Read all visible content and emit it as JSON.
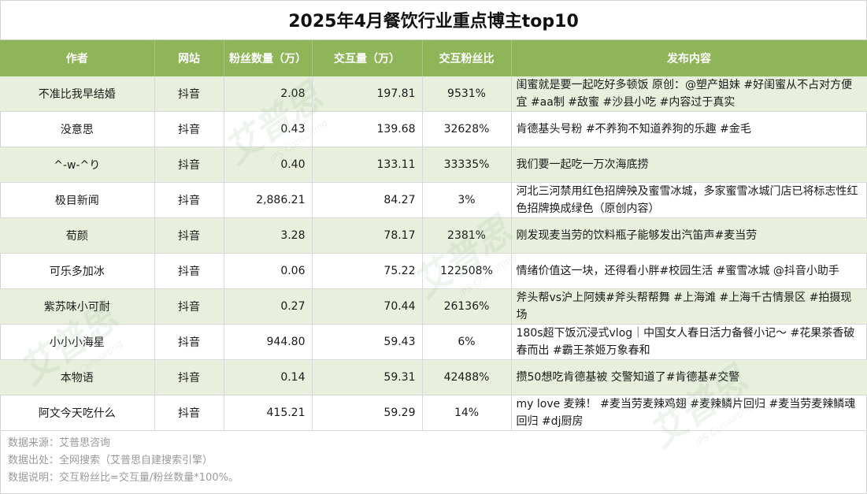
{
  "title": "2025年4月餐饮行业重点博主top10",
  "headers": [
    "作者",
    "网站",
    "粉丝数量（万）",
    "交互量（万）",
    "交互粉丝比",
    "发布内容"
  ],
  "rows": [
    {
      "author": "不准比我早结婚",
      "site": "抖音",
      "fans": "2.08",
      "interactions": "197.81",
      "ratio": "9531%",
      "content": "闺蜜就是要一起吃好多顿饭 原创：@塑产姐妹 #好闺蜜从不占对方便宜 #aa制 #敌蜜 #沙县小吃 #内容过于真实"
    },
    {
      "author": "没意思",
      "site": "抖音",
      "fans": "0.43",
      "interactions": "139.68",
      "ratio": "32628%",
      "content": "肯德基头号粉 #不养狗不知道养狗的乐趣 #金毛"
    },
    {
      "author": "^-w-^り",
      "site": "抖音",
      "fans": "0.40",
      "interactions": "133.11",
      "ratio": "33335%",
      "content": "我们要一起吃一万次海底捞"
    },
    {
      "author": "极目新闻",
      "site": "抖音",
      "fans": "2,886.21",
      "interactions": "84.27",
      "ratio": "3%",
      "content": "河北三河禁用红色招牌殃及蜜雪冰城，多家蜜雪冰城门店已将标志性红色招牌换成绿色（原创内容）"
    },
    {
      "author": "荀颜",
      "site": "抖音",
      "fans": "3.28",
      "interactions": "78.17",
      "ratio": "2381%",
      "content": "刚发现麦当劳的饮料瓶子能够发出汽笛声#麦当劳"
    },
    {
      "author": "可乐多加冰",
      "site": "抖音",
      "fans": "0.06",
      "interactions": "75.22",
      "ratio": "122508%",
      "content": "情绪价值这一块，还得看小胖#校园生活 #蜜雪冰城 @抖音小助手"
    },
    {
      "author": "紫苏味小可耐",
      "site": "抖音",
      "fans": "0.27",
      "interactions": "70.44",
      "ratio": "26136%",
      "content": "斧头帮vs沪上阿姨#斧头帮帮舞 #上海滩 #上海千古情景区 #拍摄现场"
    },
    {
      "author": "小小小海星",
      "site": "抖音",
      "fans": "944.80",
      "interactions": "59.43",
      "ratio": "6%",
      "content": "180s超下饭沉浸式vlog｜中国女人春日活力备餐小记～ #花果茶香破春而出 #霸王茶姬万象春和"
    },
    {
      "author": "本物语",
      "site": "抖音",
      "fans": "0.14",
      "interactions": "59.31",
      "ratio": "42488%",
      "content": "攒50想吃肯德基被 交警知道了#肯德基#交警"
    },
    {
      "author": "阿文今天吃什么",
      "site": "抖音",
      "fans": "415.21",
      "interactions": "59.29",
      "ratio": "14%",
      "content": "my love 麦辣！ #麦当劳麦辣鸡翅 #麦辣鳞片回归 #麦当劳麦辣鳞魂回归 #dj厨房"
    }
  ],
  "notes": [
    "数据来源：艾普思咨询",
    "数据出处：全网搜索（艾普思自建搜索引擎）",
    "数据说明：交互粉丝比=交互量/粉丝数量*100%。"
  ],
  "watermark": {
    "brand": "艾普思",
    "sub": "IPS Consulting"
  },
  "colors": {
    "header": "#8fb559",
    "alt_row": "#e8efdc"
  }
}
